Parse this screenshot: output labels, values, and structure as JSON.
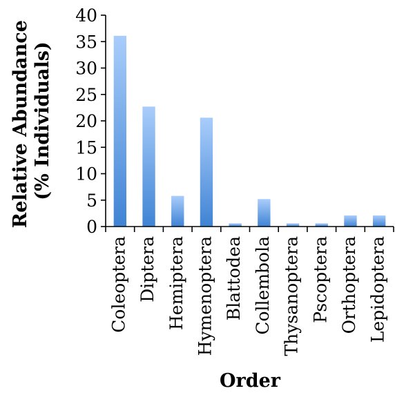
{
  "chart_data": {
    "type": "bar",
    "title": "",
    "xlabel": "Order",
    "ylabel_line1": "Relative Abundance",
    "ylabel_line2": "(% Individuals)",
    "ylim": [
      0,
      40
    ],
    "yticks": [
      "0",
      "5",
      "10",
      "15",
      "20",
      "25",
      "30",
      "35",
      "40"
    ],
    "grid": false,
    "legend": "none",
    "categories": [
      "Coleoptera",
      "Diptera",
      "Hemiptera",
      "Hymenoptera",
      "Blattodea",
      "Collembola",
      "Thysanoptera",
      "Pscoptera",
      "Orthoptera",
      "Lepidoptera"
    ],
    "values": [
      36.1,
      22.7,
      5.8,
      20.6,
      0.6,
      5.2,
      0.6,
      0.6,
      2.1,
      2.1
    ],
    "colors": {
      "bar_top": "#a9cdfb",
      "bar_bottom": "#3f83d4",
      "axis": "#000000"
    }
  }
}
